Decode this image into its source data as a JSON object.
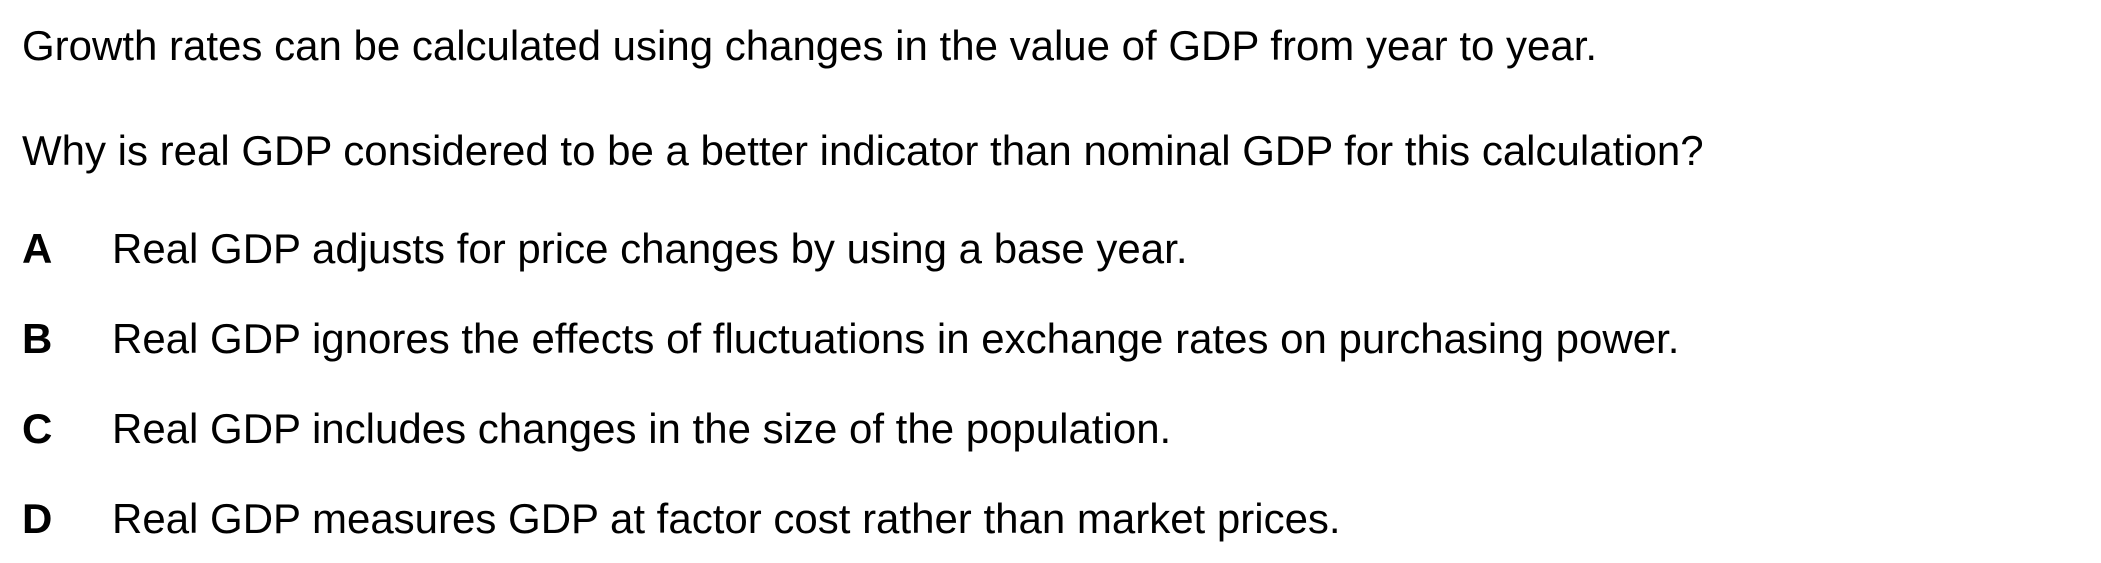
{
  "question": {
    "stem": "Growth rates can be calculated using changes in the value of GDP from year to year.",
    "prompt": "Why is real GDP considered to be a better indicator than nominal GDP for this calculation?"
  },
  "options": [
    {
      "letter": "A",
      "text": "Real GDP adjusts for price changes by using a base year."
    },
    {
      "letter": "B",
      "text": "Real GDP ignores the effects of fluctuations in exchange rates on purchasing power."
    },
    {
      "letter": "C",
      "text": "Real GDP includes changes in the size of the population."
    },
    {
      "letter": "D",
      "text": "Real GDP measures GDP at factor cost rather than market prices."
    }
  ]
}
